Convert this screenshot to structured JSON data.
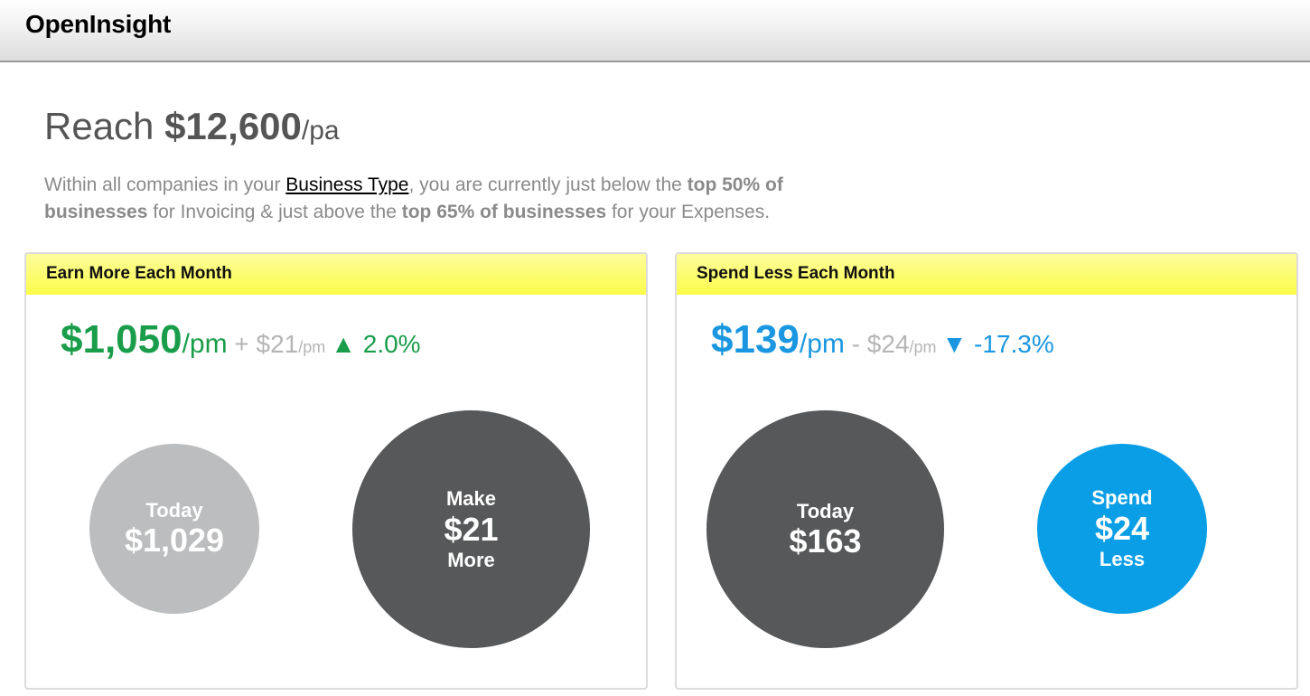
{
  "header": {
    "app_title": "OpenInsight"
  },
  "headline": {
    "prefix": "Reach ",
    "amount": "$12,600",
    "unit": "/pa"
  },
  "summary": {
    "part1": "Within all companies in your ",
    "link_text": "Business Type",
    "part2": ", you are currently just below the ",
    "bold1": "top 50% of businesses",
    "part3": " for Invoicing & just above the ",
    "bold2": "top 65% of businesses",
    "part4": " for your Expenses."
  },
  "earn_panel": {
    "title": "Earn More Each Month",
    "amount": "$1,050",
    "per": "/pm",
    "operator": " + ",
    "delta": "$21",
    "delta_per": "/pm",
    "change_icon": "triangle-up-icon",
    "change": "▲ 2.0%",
    "accent_color": "#1a9d4a",
    "today_circle": {
      "label": "Today",
      "value": "$1,029",
      "color": "#bcbdbe"
    },
    "target_circle": {
      "top_label": "Make",
      "value": "$21",
      "bottom_label": "More",
      "color": "#575859"
    }
  },
  "spend_panel": {
    "title": "Spend Less Each Month",
    "amount": "$139",
    "per": "/pm",
    "operator": " - ",
    "delta": "$24",
    "delta_per": "/pm",
    "change_icon": "triangle-down-icon",
    "change": "▼ -17.3%",
    "accent_color": "#1a97e0",
    "today_circle": {
      "label": "Today",
      "value": "$163",
      "color": "#575859"
    },
    "target_circle": {
      "top_label": "Spend",
      "value": "$24",
      "bottom_label": "Less",
      "color": "#0a9ee6"
    }
  },
  "colors": {
    "header_yellow": "#fbfb4a",
    "text_grey": "#555556"
  }
}
